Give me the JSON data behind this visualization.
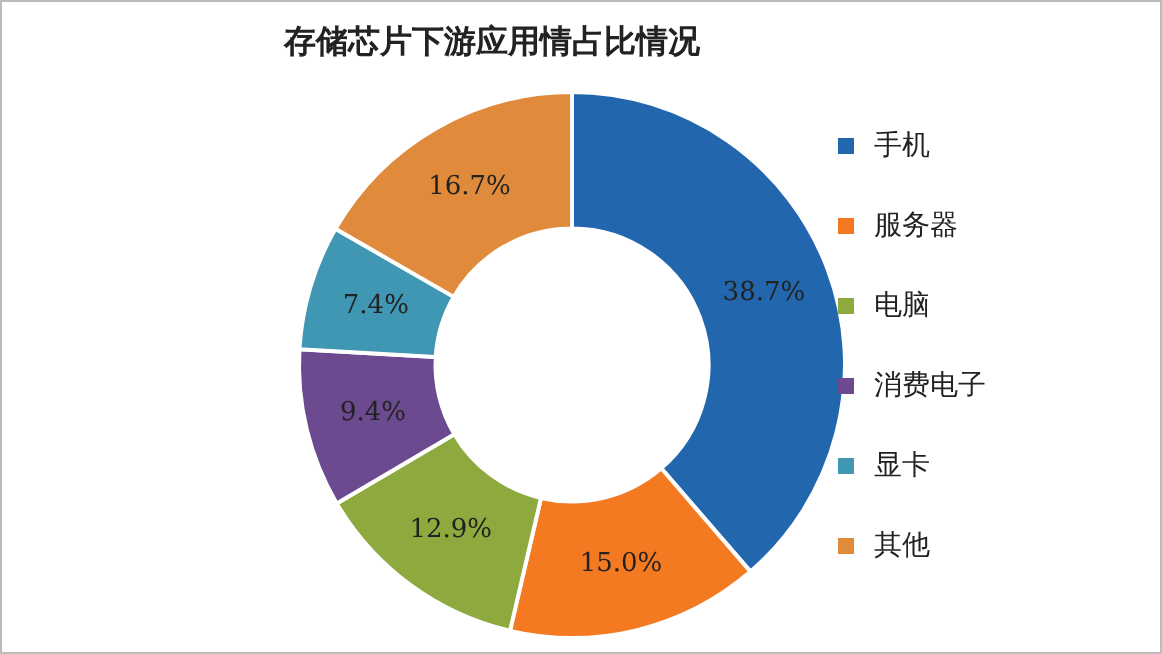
{
  "chart_data": {
    "type": "donut",
    "title": "存储芯片下游应用情占比情况",
    "categories": [
      "手机",
      "服务器",
      "电脑",
      "消费电子",
      "显卡",
      "其他"
    ],
    "values": [
      38.7,
      15.0,
      12.9,
      9.4,
      7.4,
      16.7
    ],
    "value_labels": [
      "38.7%",
      "15.0%",
      "12.9%",
      "9.4%",
      "7.4%",
      "16.7%"
    ],
    "colors": [
      "#2266ad",
      "#f47a22",
      "#8ea93d",
      "#6b4a90",
      "#3f97b3",
      "#e08a3c"
    ],
    "legend": "right"
  }
}
